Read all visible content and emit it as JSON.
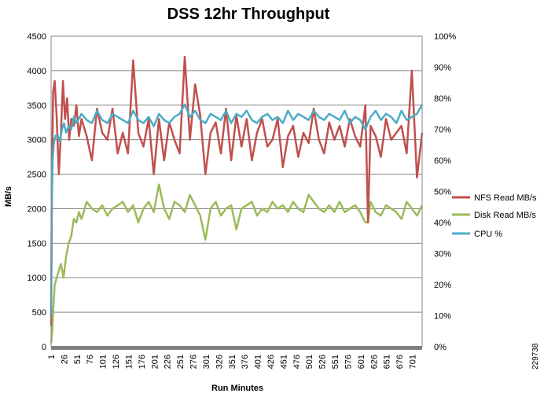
{
  "chart_data": {
    "type": "line",
    "title": "DSS 12hr Throughput",
    "xlabel": "Run Minutes",
    "ylabel": "MB/s",
    "ylim": [
      0,
      4500
    ],
    "y_ticks": [
      "0",
      "500",
      "1000",
      "1500",
      "2000",
      "2500",
      "3000",
      "3500",
      "4000",
      "4500"
    ],
    "y2lim": [
      0,
      100
    ],
    "y2_ticks": [
      "0%",
      "10%",
      "20%",
      "30%",
      "40%",
      "50%",
      "60%",
      "70%",
      "80%",
      "90%",
      "100%"
    ],
    "x_range": [
      1,
      720
    ],
    "x_ticks": [
      "1",
      "26",
      "51",
      "76",
      "101",
      "126",
      "151",
      "176",
      "201",
      "226",
      "251",
      "276",
      "301",
      "326",
      "351",
      "376",
      "401",
      "426",
      "451",
      "476",
      "501",
      "526",
      "551",
      "576",
      "601",
      "626",
      "651",
      "676",
      "701"
    ],
    "grid": "horizontal",
    "legend_position": "right",
    "series": [
      {
        "name": "NFS Read  MB/s",
        "axis": "left",
        "color": "#c0504d",
        "x": [
          1,
          3,
          5,
          8,
          12,
          16,
          20,
          24,
          28,
          32,
          36,
          40,
          45,
          50,
          55,
          60,
          70,
          80,
          90,
          100,
          110,
          120,
          130,
          140,
          150,
          160,
          170,
          180,
          190,
          200,
          210,
          220,
          230,
          240,
          250,
          260,
          270,
          280,
          290,
          300,
          310,
          320,
          330,
          340,
          350,
          360,
          370,
          380,
          390,
          400,
          410,
          420,
          430,
          440,
          450,
          460,
          470,
          480,
          490,
          500,
          510,
          520,
          530,
          540,
          550,
          560,
          570,
          580,
          590,
          600,
          610,
          615,
          620,
          630,
          640,
          650,
          660,
          670,
          680,
          690,
          700,
          710,
          720
        ],
        "values": [
          300,
          2600,
          3700,
          3850,
          3300,
          2500,
          3100,
          3850,
          3300,
          3600,
          3000,
          3300,
          3200,
          3500,
          3050,
          3300,
          3050,
          2700,
          3450,
          3100,
          3000,
          3450,
          2800,
          3100,
          2800,
          4150,
          3100,
          2900,
          3300,
          2500,
          3300,
          2700,
          3250,
          3000,
          2800,
          4200,
          3000,
          3800,
          3350,
          2500,
          3100,
          3250,
          2800,
          3450,
          2700,
          3350,
          2900,
          3300,
          2700,
          3100,
          3300,
          2900,
          3000,
          3300,
          2600,
          3050,
          3200,
          2750,
          3100,
          2950,
          3450,
          3000,
          2800,
          3250,
          3000,
          3200,
          2900,
          3300,
          3050,
          2900,
          3500,
          1800,
          3200,
          3050,
          2750,
          3300,
          3000,
          3100,
          3200,
          2800,
          4000,
          2450,
          3100
        ]
      },
      {
        "name": "Disk Read MB/s",
        "axis": "left",
        "color": "#9bbb59",
        "x": [
          1,
          3,
          5,
          8,
          12,
          16,
          20,
          25,
          30,
          35,
          40,
          45,
          50,
          55,
          60,
          70,
          80,
          90,
          100,
          110,
          120,
          130,
          140,
          150,
          160,
          170,
          180,
          190,
          200,
          210,
          220,
          230,
          240,
          250,
          260,
          270,
          280,
          290,
          300,
          310,
          320,
          330,
          340,
          350,
          360,
          370,
          380,
          390,
          400,
          410,
          420,
          430,
          440,
          450,
          460,
          470,
          480,
          490,
          500,
          510,
          520,
          530,
          540,
          550,
          560,
          570,
          580,
          590,
          600,
          610,
          615,
          620,
          630,
          640,
          650,
          660,
          670,
          680,
          690,
          700,
          710,
          720
        ],
        "values": [
          50,
          200,
          500,
          900,
          1000,
          1100,
          1200,
          1000,
          1300,
          1500,
          1600,
          1850,
          1800,
          1950,
          1850,
          2100,
          2000,
          1950,
          2050,
          1900,
          2000,
          2050,
          2100,
          1950,
          2050,
          1800,
          2000,
          2100,
          1950,
          2350,
          2000,
          1850,
          2100,
          2050,
          1950,
          2200,
          2050,
          1900,
          1550,
          2000,
          2100,
          1900,
          2000,
          2050,
          1700,
          2000,
          2050,
          2100,
          1900,
          2000,
          1950,
          2100,
          2000,
          2050,
          1950,
          2100,
          2000,
          1950,
          2200,
          2100,
          2000,
          1950,
          2050,
          1950,
          2100,
          1950,
          2000,
          2050,
          1950,
          1800,
          1800,
          2100,
          1950,
          1900,
          2050,
          2000,
          1950,
          1850,
          2100,
          2000,
          1900,
          2050
        ]
      },
      {
        "name": "CPU %",
        "axis": "right",
        "color": "#4bacc6",
        "x": [
          1,
          2,
          4,
          6,
          8,
          10,
          14,
          18,
          22,
          26,
          30,
          35,
          40,
          45,
          50,
          60,
          70,
          80,
          90,
          100,
          110,
          120,
          130,
          140,
          150,
          160,
          170,
          180,
          190,
          200,
          210,
          220,
          230,
          240,
          250,
          260,
          270,
          280,
          290,
          300,
          310,
          320,
          330,
          340,
          350,
          360,
          370,
          380,
          390,
          400,
          410,
          420,
          430,
          440,
          450,
          460,
          470,
          480,
          490,
          500,
          510,
          520,
          530,
          540,
          550,
          560,
          570,
          580,
          590,
          600,
          610,
          620,
          630,
          640,
          650,
          660,
          670,
          680,
          690,
          700,
          710,
          720
        ],
        "values": [
          10,
          45,
          60,
          65,
          67,
          68,
          68,
          66,
          70,
          72,
          69,
          71,
          70,
          74,
          72,
          75,
          73,
          72,
          76,
          73,
          72,
          75,
          74,
          73,
          72,
          76,
          73,
          72,
          74,
          71,
          75,
          73,
          72,
          74,
          75,
          78,
          74,
          76,
          73,
          72,
          75,
          74,
          73,
          76,
          72,
          75,
          74,
          76,
          73,
          72,
          74,
          75,
          73,
          74,
          72,
          76,
          73,
          75,
          74,
          73,
          76,
          74,
          73,
          75,
          74,
          73,
          76,
          72,
          74,
          73,
          70,
          74,
          76,
          73,
          75,
          74,
          72,
          76,
          73,
          74,
          75,
          78
        ]
      }
    ]
  },
  "figure_id": "229738"
}
